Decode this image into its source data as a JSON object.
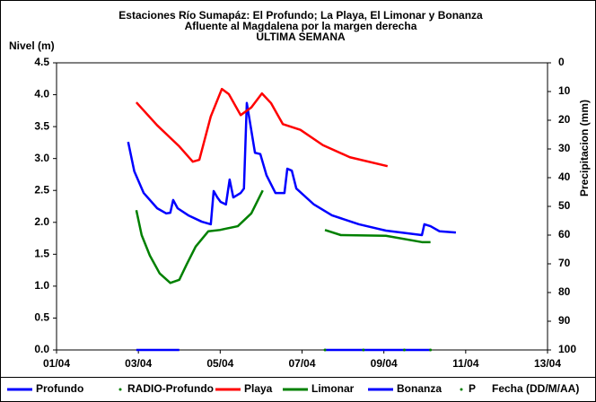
{
  "chart_data": {
    "type": "line",
    "title": "Estaciones Río Sumapáz: El Profundo; La Playa, El Limonar y Bonanza",
    "subtitle": "Afluente al Magdalena por la margen derecha",
    "period": "ULTIMA SEMANA",
    "y_label": "Nivel (m)",
    "y2_label": "Precipitacion (mm)",
    "x_label": "Fecha (DD/M/AA)",
    "xlim": [
      1,
      13
    ],
    "xticks": [
      {
        "value": 1,
        "label": "01/04"
      },
      {
        "value": 3,
        "label": "03/04"
      },
      {
        "value": 5,
        "label": "05/04"
      },
      {
        "value": 7,
        "label": "07/04"
      },
      {
        "value": 9,
        "label": "09/04"
      },
      {
        "value": 11,
        "label": "11/04"
      },
      {
        "value": 13,
        "label": "13/04"
      }
    ],
    "ylim": [
      0,
      4.5
    ],
    "yticks": [
      {
        "value": 0,
        "label": "0.0"
      },
      0.5,
      {
        "value": 1,
        "label": "1.0"
      },
      1.5,
      {
        "value": 2,
        "label": "2.0"
      },
      2.5,
      {
        "value": 3,
        "label": "3.0"
      },
      3.5,
      {
        "value": 4,
        "label": "4.0"
      },
      4.5
    ],
    "y2lim": [
      100,
      0
    ],
    "y2ticks": [
      0,
      10,
      20,
      30,
      40,
      50,
      60,
      70,
      80,
      90,
      100
    ],
    "grid": false,
    "legend": "bottom",
    "series": [
      {
        "name": "Profundo",
        "color": "#0000ff",
        "style": "line",
        "x": [
          2.75,
          2.9,
          3.13,
          3.46,
          3.68,
          3.78,
          3.85,
          3.96,
          4.22,
          4.55,
          4.77,
          4.84,
          4.93,
          5.01,
          5.14,
          5.23,
          5.32,
          5.5,
          5.58,
          5.65,
          5.74,
          5.85,
          5.98,
          6.13,
          6.35,
          6.57,
          6.64,
          6.75,
          6.86,
          7.29,
          7.73,
          8.39,
          9.05,
          9.93,
          9.99,
          10.14,
          10.36,
          10.76
        ],
        "values": [
          3.26,
          2.8,
          2.46,
          2.22,
          2.14,
          2.15,
          2.35,
          2.22,
          2.11,
          2.01,
          1.97,
          2.49,
          2.39,
          2.32,
          2.28,
          2.67,
          2.39,
          2.46,
          2.53,
          3.87,
          3.52,
          3.09,
          3.07,
          2.74,
          2.46,
          2.46,
          2.84,
          2.81,
          2.53,
          2.28,
          2.11,
          1.97,
          1.87,
          1.8,
          1.97,
          1.94,
          1.86,
          1.84
        ]
      },
      {
        "name": "RADIO-Profundo",
        "color": "#008000",
        "style": "dots",
        "x": [],
        "values": []
      },
      {
        "name": "Playa",
        "color": "#ff0000",
        "style": "line",
        "x": [
          2.95,
          3.46,
          4.0,
          4.33,
          4.49,
          4.77,
          5.04,
          5.21,
          5.5,
          5.76,
          6.02,
          6.24,
          6.53,
          6.96,
          7.51,
          8.17,
          9.09
        ],
        "values": [
          3.88,
          3.52,
          3.19,
          2.95,
          2.98,
          3.66,
          4.09,
          4.01,
          3.68,
          3.8,
          4.02,
          3.87,
          3.54,
          3.45,
          3.21,
          3.02,
          2.88
        ]
      },
      {
        "name": "Limonar",
        "color": "#008000",
        "style": "line",
        "x": [
          2.95,
          3.08,
          3.28,
          3.52,
          3.78,
          4.0,
          4.18,
          4.4,
          4.71,
          4.99,
          5.43,
          5.76,
          6.04,
          7.0,
          7.56,
          7.95,
          9.05,
          9.93,
          10.14
        ],
        "values": [
          2.19,
          1.8,
          1.48,
          1.2,
          1.05,
          1.1,
          1.34,
          1.62,
          1.86,
          1.88,
          1.94,
          2.14,
          2.5,
          null,
          1.88,
          1.8,
          1.79,
          1.69,
          1.69
        ]
      },
      {
        "name": "Bonanza",
        "color": "#0000ff",
        "style": "line",
        "x": [
          2.95,
          4.0,
          6.0,
          7.56,
          10.14
        ],
        "values": [
          0,
          0,
          null,
          0,
          0
        ]
      },
      {
        "name": "P",
        "color": "#008000",
        "style": "dots",
        "axis": "y2",
        "x": [
          7.56,
          8.5,
          9.5,
          10.14
        ],
        "values": [
          100,
          100,
          100,
          100
        ]
      }
    ]
  }
}
